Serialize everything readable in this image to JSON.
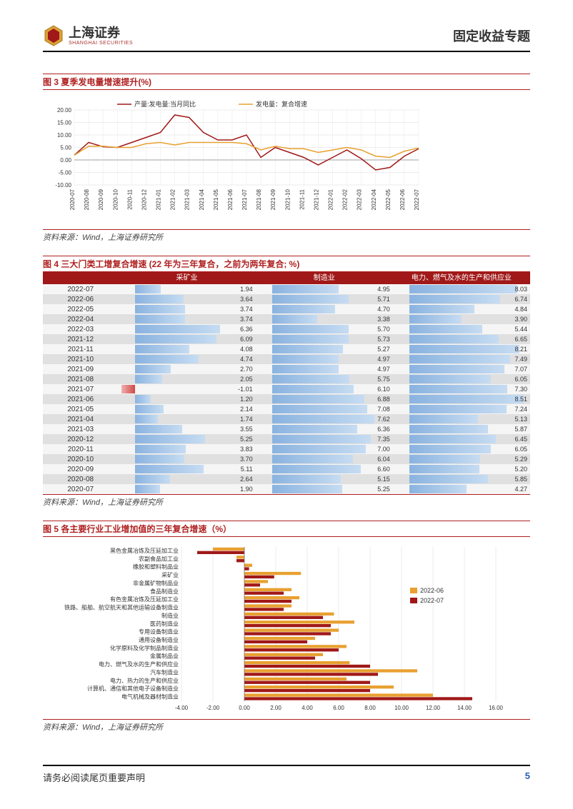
{
  "header": {
    "brand_cn": "上海证券",
    "brand_en": "SHANGHAI SECURITIES",
    "doc_title": "固定收益专题"
  },
  "fig3": {
    "title": "图 3 夏季发电量增速提升(%)",
    "source": "资料来源：Wind，上海证券研究所",
    "type": "line",
    "legend": [
      {
        "label": "产量:发电量:当月同比",
        "color": "#a01818"
      },
      {
        "label": "发电量：复合增速",
        "color": "#e8a030"
      }
    ],
    "ylim": [
      -10,
      20
    ],
    "ytick_step": 5,
    "grid_color": "#d8d8d8",
    "background_color": "#ffffff",
    "label_fontsize": 8,
    "x_labels": [
      "2020-07",
      "2020-08",
      "2020-09",
      "2020-10",
      "2020-11",
      "2020-12",
      "2021-01",
      "2021-02",
      "2021-03",
      "2021-04",
      "2021-05",
      "2021-06",
      "2021-07",
      "2021-08",
      "2021-09",
      "2021-10",
      "2021-11",
      "2021-12",
      "2022-01",
      "2022-02",
      "2022-03",
      "2022-04",
      "2022-05",
      "2022-06",
      "2022-07"
    ],
    "series1": [
      1.9,
      7.0,
      5.3,
      5.0,
      7.0,
      9.0,
      11.0,
      18.0,
      17.0,
      11.0,
      8.0,
      8.0,
      10.0,
      1.0,
      5.0,
      3.0,
      1.0,
      -2.0,
      1.0,
      4.0,
      0.5,
      -4.0,
      -3.0,
      1.5,
      4.5
    ],
    "series2": [
      1.9,
      5.5,
      5.5,
      5.0,
      5.0,
      6.5,
      7.0,
      6.0,
      7.0,
      7.0,
      7.0,
      7.0,
      6.5,
      4.0,
      5.5,
      4.5,
      4.5,
      3.0,
      4.0,
      5.0,
      4.0,
      1.5,
      1.0,
      3.5,
      4.8
    ]
  },
  "fig4": {
    "title": "图 4 三大门类工增复合增速 (22 年为三年复合，之前为两年复合; %)",
    "source": "资料来源：Wind，上海证券研究所",
    "columns": [
      "",
      "采矿业",
      "制造业",
      "电力、燃气及水的生产和供应业"
    ],
    "header_bg": "#a01818",
    "header_color": "#ffffff",
    "row_alt_colors": [
      "#f5f5f5",
      "#e0e0e0"
    ],
    "bar_color": "#8ab3e0",
    "bar_neg_color": "#d04848",
    "col_range": 9,
    "rows": [
      {
        "date": "2022-07",
        "v": [
          1.94,
          4.95,
          8.03
        ]
      },
      {
        "date": "2022-06",
        "v": [
          3.64,
          5.71,
          6.74
        ]
      },
      {
        "date": "2022-05",
        "v": [
          3.74,
          4.7,
          4.84
        ]
      },
      {
        "date": "2022-04",
        "v": [
          3.74,
          3.38,
          3.9
        ]
      },
      {
        "date": "2022-03",
        "v": [
          6.36,
          5.7,
          5.44
        ]
      },
      {
        "date": "2021-12",
        "v": [
          6.09,
          5.73,
          6.65
        ]
      },
      {
        "date": "2021-11",
        "v": [
          4.08,
          5.27,
          8.21
        ]
      },
      {
        "date": "2021-10",
        "v": [
          4.74,
          4.97,
          7.49
        ]
      },
      {
        "date": "2021-09",
        "v": [
          2.7,
          4.97,
          7.07
        ]
      },
      {
        "date": "2021-08",
        "v": [
          2.05,
          5.75,
          6.05
        ]
      },
      {
        "date": "2021-07",
        "v": [
          -1.01,
          6.1,
          7.3
        ]
      },
      {
        "date": "2021-06",
        "v": [
          1.2,
          6.88,
          8.51
        ]
      },
      {
        "date": "2021-05",
        "v": [
          2.14,
          7.08,
          7.24
        ]
      },
      {
        "date": "2021-04",
        "v": [
          1.74,
          7.62,
          5.13
        ]
      },
      {
        "date": "2021-03",
        "v": [
          3.55,
          6.36,
          5.87
        ]
      },
      {
        "date": "2020-12",
        "v": [
          5.25,
          7.35,
          6.45
        ]
      },
      {
        "date": "2020-11",
        "v": [
          3.83,
          7.0,
          6.05
        ]
      },
      {
        "date": "2020-10",
        "v": [
          3.7,
          6.04,
          5.29
        ]
      },
      {
        "date": "2020-09",
        "v": [
          5.11,
          6.6,
          5.2
        ]
      },
      {
        "date": "2020-08",
        "v": [
          2.64,
          5.15,
          5.85
        ]
      },
      {
        "date": "2020-07",
        "v": [
          1.9,
          5.25,
          4.27
        ]
      }
    ]
  },
  "fig5": {
    "title": "图 5 各主要行业工业增加值的三年复合增速（%）",
    "source": "资料来源：Wind，上海证券研究所",
    "type": "bar",
    "orientation": "horizontal",
    "legend": [
      {
        "label": "2022-06",
        "color": "#e8a030"
      },
      {
        "label": "2022-07",
        "color": "#a01818"
      }
    ],
    "xlim": [
      -4,
      16
    ],
    "xtick_step": 2,
    "grid_color": "#d8d8d8",
    "label_fontsize": 8,
    "categories": [
      "黑色金属冶炼及压延加工业",
      "农副食品加工业",
      "橡胶和塑料制品业",
      "采矿业",
      "非金属矿物制品业",
      "食品制造业",
      "有色金属冶炼及压延加工业",
      "铁路、船舶、航空航天和其他运输设备制造业",
      "制造业",
      "医药制造业",
      "专用设备制造业",
      "通用设备制造业",
      "化学原料及化学制品制造业",
      "金属制品业",
      "电力、燃气及水的生产和供应业",
      "汽车制造业",
      "电力、热力的生产和供应业",
      "计算机、通信和其他电子设备制造业",
      "电气机械及器材制造业"
    ],
    "series_06": [
      -2.0,
      -0.5,
      0.5,
      3.6,
      1.5,
      3.0,
      3.5,
      3.0,
      5.7,
      7.0,
      6.0,
      4.5,
      6.5,
      5.0,
      6.7,
      11.0,
      6.5,
      9.5,
      12.0
    ],
    "series_07": [
      -3.0,
      -0.5,
      0.3,
      1.9,
      1.0,
      2.5,
      3.0,
      2.5,
      5.0,
      5.5,
      5.5,
      4.0,
      6.0,
      4.5,
      8.0,
      8.5,
      8.0,
      8.0,
      14.5
    ]
  },
  "footer": {
    "disclaimer": "请务必阅读尾页重要声明",
    "page": "5"
  }
}
